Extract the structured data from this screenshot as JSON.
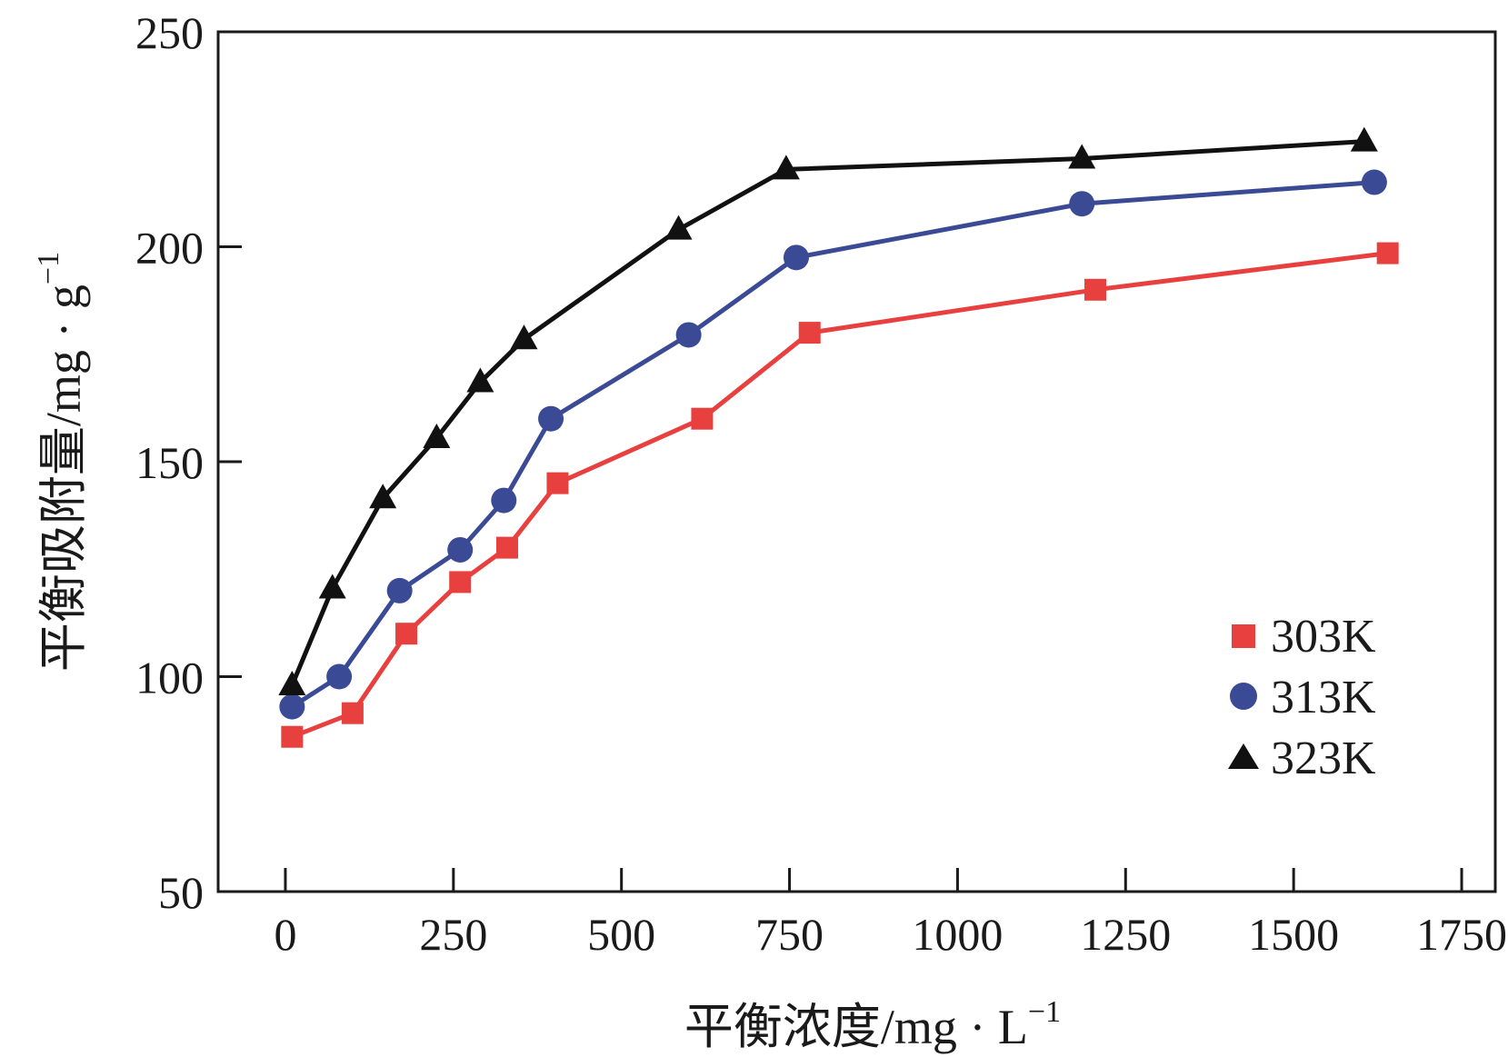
{
  "chart_data": {
    "type": "line",
    "xlabel": "平衡浓度/mg · L",
    "xlabel_superscript": "−1",
    "ylabel": "平衡吸附量/mg · g",
    "ylabel_superscript": "−1",
    "xlim": [
      -100,
      1800
    ],
    "ylim": [
      50,
      250
    ],
    "xticks": [
      0,
      250,
      500,
      750,
      1000,
      1250,
      1500,
      1750
    ],
    "xtick_labels": [
      "0",
      "250",
      "500",
      "750",
      "1000",
      "1250",
      "1500",
      "1750"
    ],
    "yticks": [
      50,
      100,
      150,
      200,
      250
    ],
    "ytick_labels": [
      "50",
      "100",
      "150",
      "200",
      "250"
    ],
    "grid": false,
    "legend_position": "bottom-right",
    "series": [
      {
        "name": "303K",
        "marker": "square",
        "color": "#e8403f",
        "x": [
          10,
          100,
          180,
          260,
          330,
          405,
          620,
          780,
          1205,
          1640
        ],
        "y": [
          86,
          91.5,
          110,
          122,
          130,
          145,
          160,
          180,
          190,
          198.5
        ]
      },
      {
        "name": "313K",
        "marker": "circle",
        "color": "#3a4a94",
        "x": [
          10,
          80,
          170,
          260,
          325,
          395,
          600,
          760,
          1185,
          1620
        ],
        "y": [
          93,
          100,
          120,
          129.5,
          141,
          160,
          179.5,
          197.5,
          210,
          215
        ]
      },
      {
        "name": "323K",
        "marker": "triangle",
        "color": "#111111",
        "x": [
          10,
          70,
          145,
          225,
          290,
          355,
          585,
          745,
          1185,
          1605
        ],
        "y": [
          98,
          120.5,
          141.5,
          155.5,
          168.5,
          178.5,
          204,
          218,
          220.5,
          224.5
        ]
      }
    ]
  }
}
